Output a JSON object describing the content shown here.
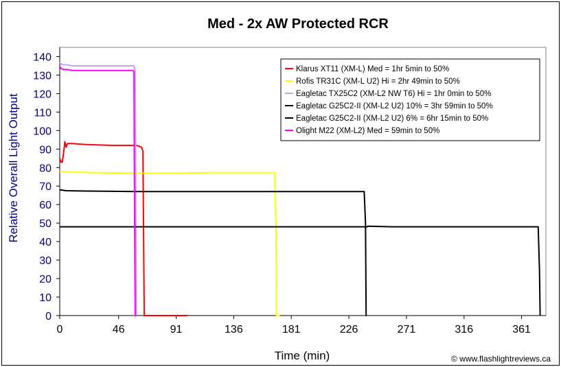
{
  "chart_data": {
    "type": "line",
    "title": "Med - 2x AW Protected RCR",
    "xlabel": "Time (min)",
    "ylabel": "Relative Overall Light Output",
    "xlim": [
      0,
      380
    ],
    "ylim": [
      0,
      145
    ],
    "x_ticks": [
      0,
      46,
      91,
      136,
      181,
      226,
      271,
      316,
      361
    ],
    "y_ticks": [
      0,
      10,
      20,
      30,
      40,
      50,
      60,
      70,
      80,
      90,
      100,
      110,
      120,
      130,
      140
    ],
    "grid": false,
    "legend_position": "top-right",
    "copyright": "© www.flashlightreviews.ca",
    "series": [
      {
        "name": "Klarus XT11 (XM-L) Med = 1hr 5min to 50%",
        "color": "#ff0000",
        "x": [
          0,
          1,
          2,
          3,
          4,
          5,
          6,
          8,
          10,
          20,
          40,
          60,
          64,
          65,
          65.5,
          66,
          67,
          100
        ],
        "y": [
          85,
          83,
          83,
          88,
          94,
          91,
          93,
          93,
          93,
          92.5,
          92,
          92,
          91,
          89,
          50,
          0,
          0,
          0
        ]
      },
      {
        "name": "Rofis TR31C (XM-L U2) Hi = 2hr 49min to 50%",
        "color": "#ffff00",
        "x": [
          0,
          10,
          30,
          60,
          90,
          120,
          150,
          168,
          169,
          169.5,
          172
        ],
        "y": [
          78,
          77.5,
          77.2,
          77,
          77,
          77.2,
          77.2,
          77.2,
          50,
          0,
          0
        ]
      },
      {
        "name": "Eagletac TX25C2 (XM-L2 NW T6) Hi = 1hr 0min to 50%",
        "color": "#c8a0f0",
        "x": [
          0,
          1,
          3,
          6,
          10,
          20,
          30,
          40,
          50,
          58,
          59,
          59.5,
          60
        ],
        "y": [
          137,
          136,
          135.5,
          135.5,
          135,
          135,
          135,
          135,
          135,
          135,
          132,
          50,
          0
        ]
      },
      {
        "name": "Eagletac G25C2-II (XM-L2 U2) 10% = 3hr 59min to 50%",
        "color": "#000000",
        "x": [
          0,
          5,
          20,
          60,
          100,
          150,
          200,
          238,
          239,
          239.5,
          240
        ],
        "y": [
          68,
          67.5,
          67.3,
          67,
          67,
          67,
          67,
          67,
          50,
          0,
          0
        ]
      },
      {
        "name": "Eagletac G25C2-II (XM-L2 U2) 6% = 6hr 15min to 50%",
        "color": "#000000",
        "x": [
          0,
          50,
          100,
          150,
          200,
          240,
          241,
          260,
          300,
          340,
          374,
          375,
          375.5
        ],
        "y": [
          48,
          48,
          48,
          48,
          48,
          48,
          48.3,
          48,
          48,
          48,
          48,
          24,
          0
        ]
      },
      {
        "name": "Olight M22 (XM-L2) Med = 59min to 50%",
        "color": "#ff00ff",
        "x": [
          0,
          1,
          3,
          6,
          10,
          20,
          30,
          40,
          50,
          57,
          58,
          58.5,
          59,
          60
        ],
        "y": [
          135,
          133.5,
          133,
          133,
          132.5,
          132.5,
          132.5,
          132.5,
          132.5,
          132.5,
          132,
          50,
          0,
          0
        ]
      }
    ]
  }
}
